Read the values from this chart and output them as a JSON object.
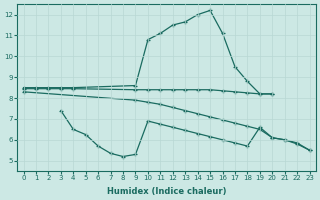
{
  "xlabel": "Humidex (Indice chaleur)",
  "bg_color": "#cce8e4",
  "grid_color": "#b8d8d4",
  "line_color": "#1a6b60",
  "xlim": [
    -0.5,
    23.5
  ],
  "ylim": [
    4.5,
    12.5
  ],
  "yticks": [
    5,
    6,
    7,
    8,
    9,
    10,
    11,
    12
  ],
  "xticks": [
    0,
    1,
    2,
    3,
    4,
    5,
    6,
    7,
    8,
    9,
    10,
    11,
    12,
    13,
    14,
    15,
    16,
    17,
    18,
    19,
    20,
    21,
    22,
    23
  ],
  "line1": {
    "x": [
      0,
      1,
      2,
      3,
      4,
      9,
      10,
      11,
      12,
      13,
      14,
      15,
      16,
      17,
      18,
      19,
      20
    ],
    "y": [
      8.5,
      8.5,
      8.5,
      8.5,
      8.5,
      8.6,
      10.8,
      11.1,
      11.5,
      11.65,
      12.0,
      12.2,
      11.1,
      9.5,
      8.8,
      8.2,
      8.2
    ]
  },
  "line2": {
    "x": [
      0,
      1,
      2,
      3,
      4,
      9,
      10,
      11,
      12,
      13,
      14,
      15,
      16,
      17,
      18,
      19,
      20
    ],
    "y": [
      8.45,
      8.45,
      8.45,
      8.45,
      8.45,
      8.4,
      8.4,
      8.4,
      8.4,
      8.4,
      8.4,
      8.4,
      8.35,
      8.3,
      8.25,
      8.2,
      8.2
    ]
  },
  "line3": {
    "x": [
      0,
      9,
      10,
      11,
      12,
      13,
      14,
      15,
      16,
      17,
      18,
      19,
      20,
      21,
      22,
      23
    ],
    "y": [
      8.3,
      7.9,
      7.8,
      7.7,
      7.55,
      7.4,
      7.25,
      7.1,
      6.95,
      6.8,
      6.65,
      6.5,
      6.1,
      6.0,
      5.85,
      5.5
    ]
  },
  "line4": {
    "x": [
      3,
      4,
      5,
      6,
      7,
      8,
      9,
      10,
      11,
      12,
      13,
      14,
      15,
      16,
      17,
      18,
      19,
      20,
      21,
      22,
      23
    ],
    "y": [
      7.4,
      6.5,
      6.25,
      5.7,
      5.35,
      5.2,
      5.3,
      6.9,
      6.75,
      6.6,
      6.45,
      6.3,
      6.15,
      6.0,
      5.85,
      5.7,
      6.6,
      6.1,
      6.0,
      5.8,
      5.5
    ]
  }
}
